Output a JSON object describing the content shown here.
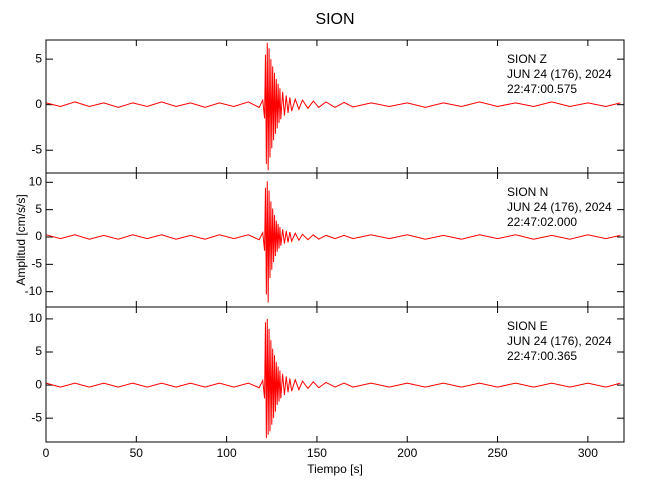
{
  "chart_data": [
    {
      "type": "line",
      "title": "SION",
      "color": "#ff0000",
      "annotation": [
        "SION   Z",
        "JUN 24 (176), 2024",
        "22:47:00.575"
      ],
      "xlim": [
        0,
        320
      ],
      "ylim": [
        -7.5,
        7.1
      ],
      "yticks": [
        -5,
        0,
        5
      ],
      "x": [
        0,
        8,
        16,
        24,
        32,
        40,
        48,
        56,
        64,
        72,
        80,
        88,
        96,
        104,
        112,
        118,
        120,
        121,
        121.5,
        122,
        122.5,
        123,
        123.5,
        124,
        124.5,
        125,
        125.5,
        126,
        126.5,
        127,
        127.5,
        128,
        128.5,
        129,
        129.5,
        130,
        131,
        132,
        133,
        134,
        135,
        136,
        138,
        140,
        142,
        145,
        148,
        151,
        155,
        160,
        165,
        170,
        180,
        190,
        200,
        210,
        220,
        230,
        240,
        250,
        260,
        270,
        280,
        290,
        300,
        310,
        318
      ],
      "values": [
        0.2,
        -0.2,
        0.3,
        -0.2,
        0.2,
        -0.3,
        0.2,
        -0.2,
        0.3,
        -0.2,
        0.2,
        -0.3,
        0.2,
        -0.2,
        0.3,
        -0.3,
        0.5,
        -1.5,
        5.5,
        -6.5,
        6.8,
        -7.2,
        6.2,
        -5.8,
        5.0,
        -4.8,
        4.2,
        -3.9,
        3.5,
        -3.2,
        2.8,
        -2.6,
        2.3,
        -2.0,
        1.8,
        -1.6,
        1.4,
        -1.2,
        1.0,
        -0.9,
        0.8,
        -0.7,
        0.6,
        -0.5,
        0.5,
        -0.4,
        0.4,
        -0.3,
        0.3,
        -0.3,
        0.25,
        -0.25,
        0.2,
        -0.2,
        0.2,
        -0.3,
        0.2,
        -0.2,
        0.3,
        -0.2,
        0.2,
        -0.2,
        0.3,
        -0.2,
        0.2,
        -0.2,
        0.2
      ]
    },
    {
      "type": "line",
      "color": "#ff0000",
      "y_label": "Amplitud [cm/s/s]",
      "annotation": [
        "SION   N",
        "JUN 24 (176), 2024",
        "22:47:02.000"
      ],
      "xlim": [
        0,
        320
      ],
      "ylim": [
        -12.8,
        11.7
      ],
      "yticks": [
        -10,
        -5,
        0,
        5,
        10
      ],
      "x": [
        0,
        8,
        16,
        24,
        32,
        40,
        48,
        56,
        64,
        72,
        80,
        88,
        96,
        104,
        112,
        118,
        120,
        121,
        121.5,
        122,
        122.5,
        123,
        123.5,
        124,
        124.5,
        125,
        125.5,
        126,
        126.5,
        127,
        127.5,
        128,
        128.5,
        129,
        129.5,
        130,
        131,
        132,
        133,
        134,
        135,
        136,
        138,
        140,
        142,
        145,
        148,
        151,
        155,
        160,
        165,
        170,
        180,
        190,
        200,
        210,
        220,
        230,
        240,
        250,
        260,
        270,
        280,
        290,
        300,
        310,
        318
      ],
      "values": [
        0.4,
        -0.3,
        0.4,
        -0.4,
        0.3,
        -0.4,
        0.4,
        -0.3,
        0.4,
        -0.4,
        0.3,
        -0.4,
        0.4,
        -0.3,
        0.4,
        -0.5,
        0.8,
        -2.5,
        9,
        -10.5,
        10.2,
        -12,
        8.5,
        -7.5,
        6.5,
        -6,
        5.2,
        -4.6,
        4,
        -3.5,
        3,
        -2.7,
        2.4,
        -2.1,
        1.8,
        -1.6,
        1.4,
        -1.2,
        1.1,
        -1,
        0.9,
        -0.8,
        0.7,
        -0.6,
        0.5,
        -0.5,
        0.4,
        -0.4,
        0.3,
        -0.3,
        0.3,
        -0.3,
        0.4,
        -0.3,
        0.4,
        -0.4,
        0.3,
        -0.4,
        0.4,
        -0.3,
        0.4,
        -0.4,
        0.3,
        -0.4,
        0.4,
        -0.3,
        0.3
      ]
    },
    {
      "type": "line",
      "color": "#ff0000",
      "x_label": "Tiempo [s]",
      "annotation": [
        "SION   E",
        "JUN 24 (176), 2024",
        "22:47:00.365"
      ],
      "xlim": [
        0,
        320
      ],
      "ylim": [
        -8.6,
        11.8
      ],
      "yticks": [
        -5,
        0,
        5,
        10
      ],
      "xticks": [
        0,
        50,
        100,
        150,
        200,
        250,
        300
      ],
      "x": [
        0,
        8,
        16,
        24,
        32,
        40,
        48,
        56,
        64,
        72,
        80,
        88,
        96,
        104,
        112,
        118,
        120,
        121,
        121.5,
        122,
        122.5,
        123,
        123.5,
        124,
        124.5,
        125,
        125.5,
        126,
        126.5,
        127,
        127.5,
        128,
        128.5,
        129,
        129.5,
        130,
        131,
        132,
        133,
        134,
        135,
        136,
        138,
        140,
        142,
        145,
        148,
        151,
        155,
        160,
        165,
        170,
        180,
        190,
        200,
        210,
        220,
        230,
        240,
        250,
        260,
        270,
        280,
        290,
        300,
        310,
        318
      ],
      "values": [
        0.3,
        -0.3,
        0.3,
        -0.3,
        0.3,
        -0.3,
        0.3,
        -0.3,
        0.3,
        -0.3,
        0.3,
        -0.3,
        0.3,
        -0.3,
        0.3,
        -0.4,
        0.7,
        -2,
        9.5,
        -8,
        10,
        -7.5,
        8.5,
        -7,
        6.8,
        -6,
        5.5,
        -5,
        4.5,
        -4,
        3.5,
        -3,
        2.8,
        -2.5,
        2.2,
        -2,
        1.7,
        -1.5,
        1.3,
        -1.1,
        1,
        -0.9,
        0.8,
        -0.7,
        0.6,
        -0.5,
        0.5,
        -0.4,
        0.4,
        -0.3,
        0.3,
        -0.3,
        0.3,
        -0.3,
        0.3,
        -0.3,
        0.3,
        -0.3,
        0.3,
        -0.3,
        0.3,
        -0.3,
        0.3,
        -0.3,
        0.3,
        -0.3,
        0.3
      ]
    }
  ]
}
